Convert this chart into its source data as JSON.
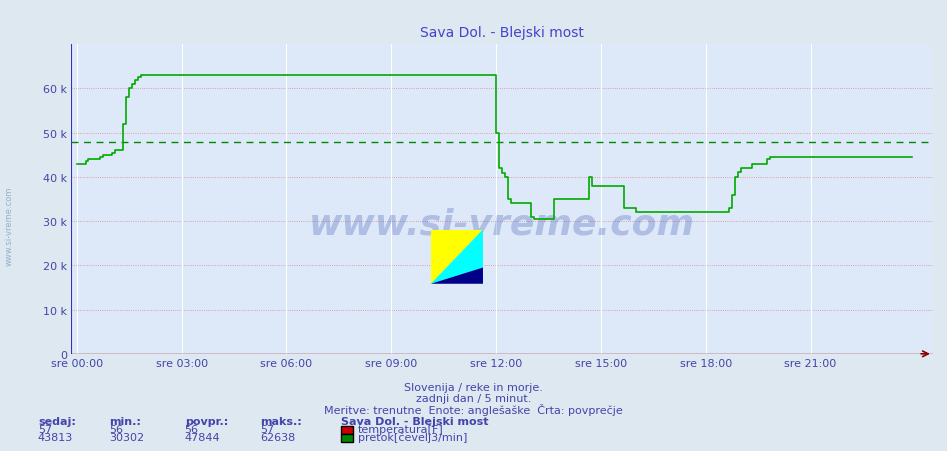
{
  "title": "Sava Dol. - Blejski most",
  "title_color": "#4444cc",
  "bg_color": "#dde8f0",
  "plot_bg_color": "#dde8f8",
  "xlabel_color": "#4444aa",
  "ylabel_color": "#4444aa",
  "ylim": [
    0,
    70000
  ],
  "yticks": [
    0,
    10000,
    20000,
    30000,
    40000,
    50000,
    60000
  ],
  "ytick_labels": [
    "0",
    "10 k",
    "20 k",
    "30 k",
    "40 k",
    "50 k",
    "60 k"
  ],
  "xtick_labels": [
    "sre 00:00",
    "sre 03:00",
    "sre 06:00",
    "sre 09:00",
    "sre 12:00",
    "sre 15:00",
    "sre 18:00",
    "sre 21:00"
  ],
  "xtick_positions": [
    0,
    36,
    72,
    108,
    144,
    180,
    216,
    252
  ],
  "n_points": 288,
  "average_line_value": 47844,
  "average_line_color": "#008800",
  "line_color": "#00aa00",
  "watermark": "www.si-vreme.com",
  "watermark_color": "#2244aa",
  "footer_line1": "Slovenija / reke in morje.",
  "footer_line2": "zadnji dan / 5 minut.",
  "footer_line3": "Meritve: trenutne  Enote: anglešaške  Črta: povprečje",
  "footer_color": "#4444aa",
  "table_headers": [
    "sedaj:",
    "min.:",
    "povpr.:",
    "maks.:"
  ],
  "table_values_temp": [
    "57",
    "56",
    "56",
    "57"
  ],
  "table_values_flow": [
    "43813",
    "30302",
    "47844",
    "62638"
  ],
  "legend_title": "Sava Dol. - Blejski most",
  "legend_temp": "temperatura[F]",
  "legend_flow": "pretok[čevelj3/min]",
  "pretok_data": [
    43000,
    43000,
    43000,
    43500,
    44000,
    44000,
    44000,
    44000,
    44500,
    45000,
    45000,
    45000,
    45500,
    46000,
    46000,
    46000,
    52000,
    58000,
    60000,
    61000,
    62000,
    62500,
    63000,
    63000,
    63000,
    63000,
    63000,
    63000,
    63000,
    63000,
    63000,
    63000,
    63000,
    63000,
    63000,
    63000,
    63000,
    63000,
    63000,
    63000,
    63000,
    63000,
    63000,
    63000,
    63000,
    63000,
    63000,
    63000,
    63000,
    63000,
    63000,
    63000,
    63000,
    63000,
    63000,
    63000,
    63000,
    63000,
    63000,
    63000,
    63000,
    63000,
    63000,
    63000,
    63000,
    63000,
    63000,
    63000,
    63000,
    63000,
    63000,
    63000,
    63000,
    63000,
    63000,
    63000,
    63000,
    63000,
    63000,
    63000,
    63000,
    63000,
    63000,
    63000,
    63000,
    63000,
    63000,
    63000,
    63000,
    63000,
    63000,
    63000,
    63000,
    63000,
    63000,
    63000,
    63000,
    63000,
    63000,
    63000,
    63000,
    63000,
    63000,
    63000,
    63000,
    63000,
    63000,
    63000,
    63000,
    63000,
    63000,
    63000,
    63000,
    63000,
    63000,
    63000,
    63000,
    63000,
    63000,
    63000,
    63000,
    63000,
    63000,
    63000,
    63000,
    63000,
    63000,
    63000,
    63000,
    63000,
    63000,
    63000,
    63000,
    63000,
    63000,
    63000,
    63000,
    63000,
    63000,
    63000,
    63000,
    63000,
    63000,
    63000,
    50000,
    42000,
    40800,
    40000,
    35000,
    34000,
    34000,
    34000,
    34000,
    34000,
    34000,
    34000,
    31000,
    30500,
    30500,
    30500,
    30500,
    30500,
    30500,
    30500,
    35000,
    35000,
    35000,
    35000,
    35000,
    35000,
    35000,
    35000,
    35000,
    35000,
    35000,
    35000,
    40000,
    38000,
    38000,
    38000,
    38000,
    38000,
    38000,
    38000,
    38000,
    38000,
    38000,
    38000,
    33000,
    33000,
    33000,
    33000,
    32000,
    32000,
    32000,
    32000,
    32000,
    32000,
    32000,
    32000,
    32000,
    32000,
    32000,
    32000,
    32000,
    32000,
    32000,
    32000,
    32000,
    32000,
    32000,
    32000,
    32000,
    32000,
    32000,
    32000,
    32000,
    32000,
    32000,
    32000,
    32000,
    32000,
    32000,
    32000,
    33000,
    36000,
    40000,
    41000,
    42000,
    42000,
    42000,
    42000,
    43000,
    43000,
    43000,
    43000,
    43000,
    44000,
    44500,
    44500,
    44500,
    44500,
    44500,
    44500,
    44500,
    44500,
    44500,
    44500,
    44500,
    44500,
    44500,
    44500,
    44500,
    44500,
    44500,
    44500,
    44500,
    44500,
    44500,
    44500,
    44500,
    44500,
    44500,
    44500,
    44500,
    44500,
    44500,
    44500,
    44500,
    44500,
    44500,
    44500,
    44500,
    44500,
    44500,
    44500,
    44500,
    44500,
    44500,
    44500,
    44500,
    44500,
    44500,
    44500,
    44500,
    44500,
    44500,
    44500
  ]
}
